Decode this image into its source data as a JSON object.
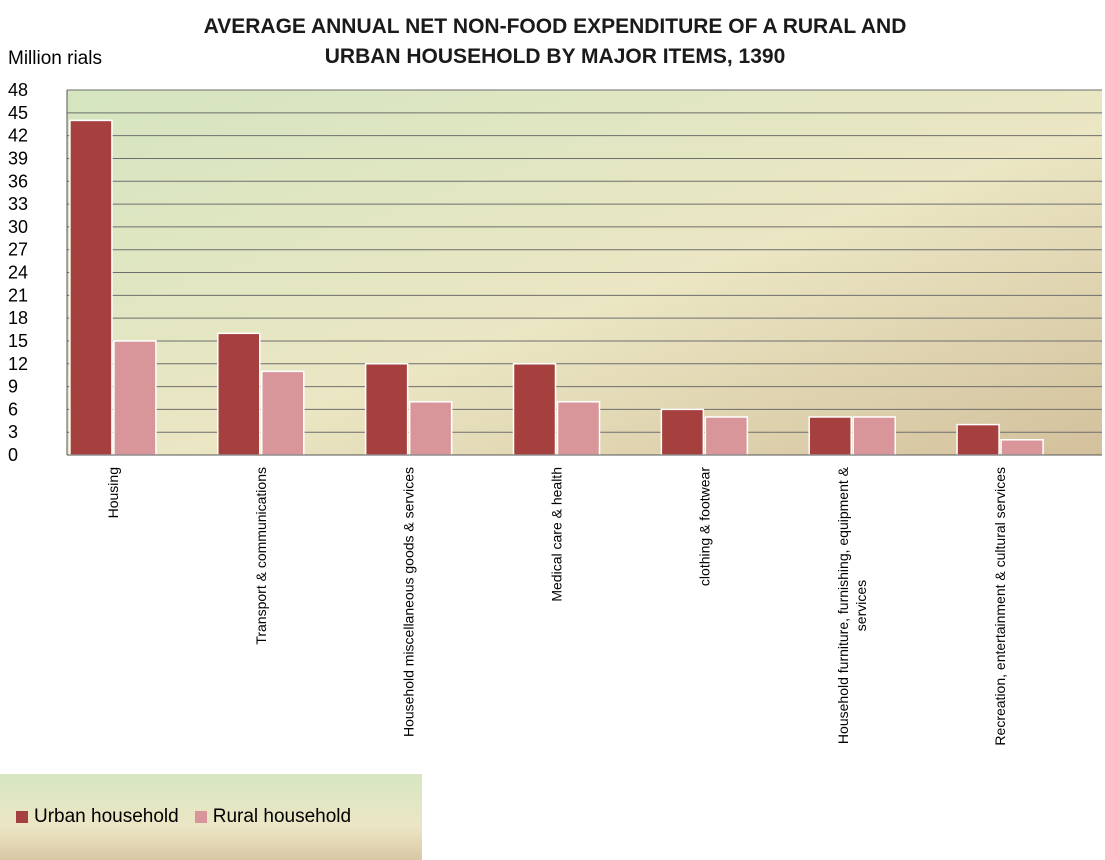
{
  "chart_data": {
    "type": "bar",
    "title_line1": "AVERAGE ANNUAL NET NON-FOOD EXPENDITURE OF A RURAL AND",
    "title_line2": "URBAN HOUSEHOLD BY MAJOR ITEMS, 1390",
    "ylabel": "Million rials",
    "xlabel": "",
    "ylim": [
      0,
      48
    ],
    "yticks": [
      0,
      3,
      6,
      9,
      12,
      15,
      18,
      21,
      24,
      27,
      30,
      33,
      36,
      39,
      42,
      45,
      48
    ],
    "grid": true,
    "legend_position": "bottom-left",
    "categories": [
      [
        "Housing"
      ],
      [
        "Transport & communications"
      ],
      [
        "Household miscellaneous goods & services"
      ],
      [
        "Medical care & health"
      ],
      [
        "clothing & footwear"
      ],
      [
        "Household furniture, furnishing, equipment &",
        "services"
      ],
      [
        "Recreation, entertainment & cultural services"
      ]
    ],
    "series": [
      {
        "name": "Urban household",
        "color": "#a5403e",
        "values": [
          44,
          16,
          12,
          12,
          6,
          5,
          4
        ]
      },
      {
        "name": "Rural household",
        "color": "#d8969a",
        "values": [
          15,
          11,
          7,
          7,
          5,
          5,
          2
        ]
      }
    ]
  },
  "colors": {
    "plot_bg_top_left": "#d6e6c2",
    "plot_bg_bottom_right": "#d6c4a0",
    "grid_line": "#6e6e6e"
  }
}
